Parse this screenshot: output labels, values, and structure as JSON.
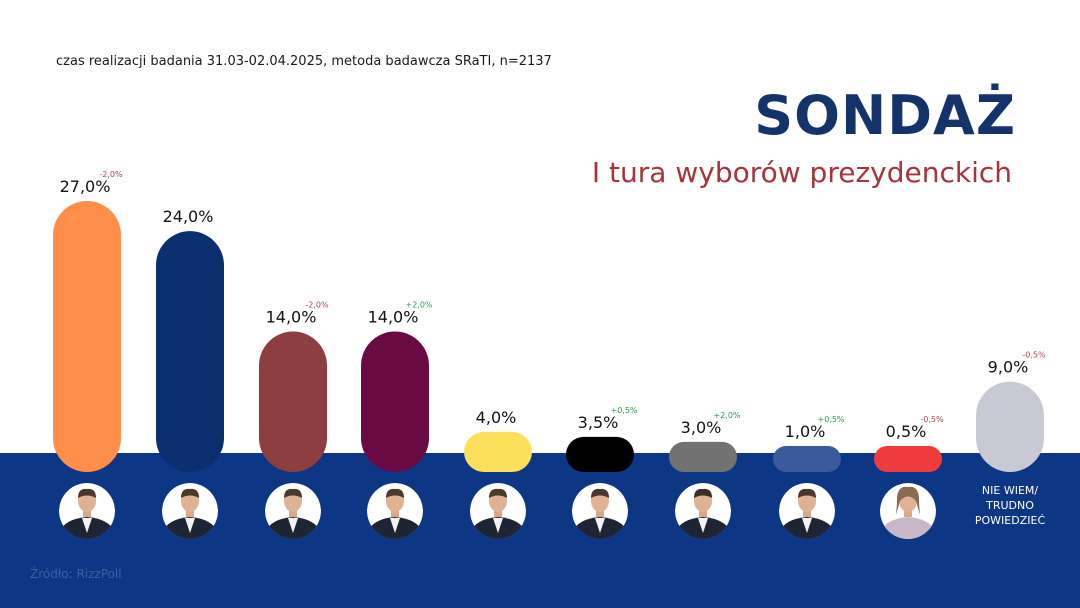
{
  "subtitle": "czas realizacji badania 31.03-02.04.2025, metoda badawcza SRaTI, n=2137",
  "title": "SONDAŻ",
  "heading": "I tura wyborów prezydenckich",
  "source": "Źródło: RizzPoll",
  "colors": {
    "band": "#0d3784",
    "title": "#14336b",
    "heading": "#a8343a",
    "change_negative": "#b3454b",
    "change_positive": "#2f9a4c"
  },
  "chart_data": {
    "type": "bar",
    "title": "SONDAŻ",
    "subtitle": "I tura wyborów prezydenckich",
    "ylim": [
      0,
      27
    ],
    "series": [
      {
        "values": [
          27.0,
          24.0,
          14.0,
          14.0,
          4.0,
          3.5,
          3.0,
          1.0,
          0.5,
          9.0
        ]
      }
    ],
    "bars": [
      {
        "value": 27.0,
        "label": "27,0%",
        "change": "-2,0%",
        "color": "#ff8e4a"
      },
      {
        "value": 24.0,
        "label": "24,0%",
        "change": "",
        "color": "#0b2e6f"
      },
      {
        "value": 14.0,
        "label": "14,0%",
        "change": "-2,0%",
        "color": "#8d3e3e"
      },
      {
        "value": 14.0,
        "label": "14,0%",
        "change": "+2,0%",
        "color": "#6a0a45"
      },
      {
        "value": 4.0,
        "label": "4,0%",
        "change": "",
        "color": "#fbe05c"
      },
      {
        "value": 3.5,
        "label": "3,5%",
        "change": "+0,5%",
        "color": "#000000"
      },
      {
        "value": 3.0,
        "label": "3,0%",
        "change": "+2,0%",
        "color": "#727272"
      },
      {
        "value": 1.0,
        "label": "1,0%",
        "change": "+0,5%",
        "color": "#3a5a9c"
      },
      {
        "value": 0.5,
        "label": "0,5%",
        "change": "-0,5%",
        "color": "#ef3b3b"
      },
      {
        "value": 9.0,
        "label": "9,0%",
        "change": "-0,5%",
        "color": "#c9c9d3",
        "category": "NIE WIEM/\nTRUDNO\nPOWIEDZIEĆ"
      }
    ]
  }
}
